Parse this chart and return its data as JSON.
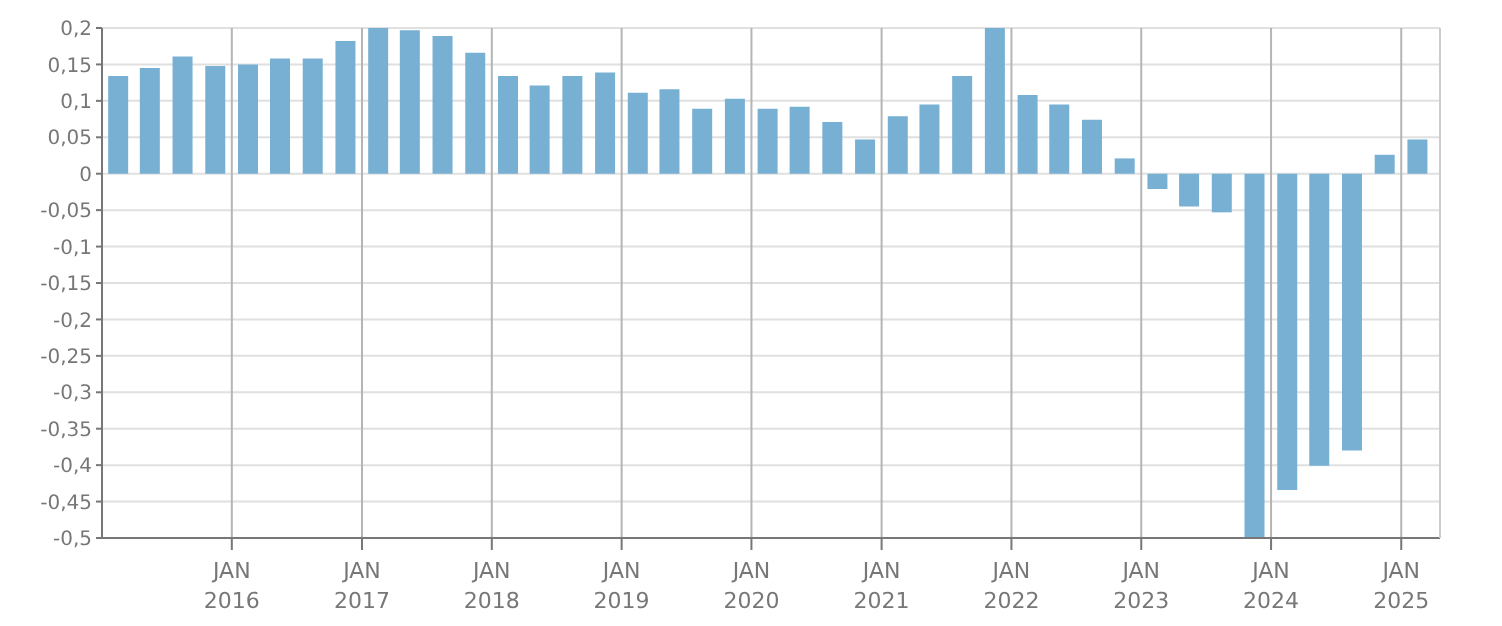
{
  "chart_data": {
    "type": "bar",
    "color": "#78b0d3",
    "x": [
      "2015-02-15",
      "2015-05-15",
      "2015-08-15",
      "2015-11-15",
      "2016-02-15",
      "2016-05-15",
      "2016-08-15",
      "2016-11-15",
      "2017-02-15",
      "2017-05-15",
      "2017-08-15",
      "2017-11-15",
      "2018-02-15",
      "2018-05-15",
      "2018-08-15",
      "2018-11-15",
      "2019-02-15",
      "2019-05-15",
      "2019-08-15",
      "2019-11-15",
      "2020-02-15",
      "2020-05-15",
      "2020-08-15",
      "2020-11-15",
      "2021-02-15",
      "2021-05-15",
      "2021-08-15",
      "2021-11-15",
      "2022-02-15",
      "2022-05-15",
      "2022-08-15",
      "2022-11-15",
      "2023-02-15",
      "2023-05-15",
      "2023-08-15",
      "2023-11-15",
      "2024-02-15",
      "2024-05-15",
      "2024-08-15",
      "2024-11-15",
      "2025-02-15"
    ],
    "values": [
      0.134,
      0.145,
      0.161,
      0.148,
      0.15,
      0.158,
      0.158,
      0.182,
      0.2,
      0.197,
      0.189,
      0.166,
      0.134,
      0.121,
      0.134,
      0.139,
      0.111,
      0.116,
      0.089,
      0.103,
      0.089,
      0.092,
      0.071,
      0.047,
      0.079,
      0.095,
      0.134,
      0.2,
      0.108,
      0.095,
      0.074,
      0.021,
      -0.021,
      -0.045,
      -0.053,
      -0.5,
      -0.434,
      -0.401,
      -0.38,
      0.026,
      0.047
    ],
    "xlim": [
      "2015-01-01",
      "2025-04-20"
    ],
    "xticks": [
      {
        "value": "2016-01-01",
        "label": "JAN 2016"
      },
      {
        "value": "2017-01-01",
        "label": "JAN 2017"
      },
      {
        "value": "2018-01-01",
        "label": "JAN 2018"
      },
      {
        "value": "2019-01-01",
        "label": "JAN 2019"
      },
      {
        "value": "2020-01-01",
        "label": "JAN 2020"
      },
      {
        "value": "2021-01-01",
        "label": "JAN 2021"
      },
      {
        "value": "2022-01-01",
        "label": "JAN 2022"
      },
      {
        "value": "2023-01-01",
        "label": "JAN 2023"
      },
      {
        "value": "2024-01-01",
        "label": "JAN 2024"
      },
      {
        "value": "2025-01-01",
        "label": "JAN 2025"
      }
    ],
    "ylim": [
      -0.5,
      0.2
    ],
    "yticks": [
      {
        "value": -0.5,
        "label": "-0,5"
      },
      {
        "value": -0.45,
        "label": "-0,45"
      },
      {
        "value": -0.4,
        "label": "-0,4"
      },
      {
        "value": -0.35,
        "label": "-0,35"
      },
      {
        "value": -0.3,
        "label": "-0,3"
      },
      {
        "value": -0.25,
        "label": "-0,25"
      },
      {
        "value": -0.2,
        "label": "-0,2"
      },
      {
        "value": -0.15,
        "label": "-0,15"
      },
      {
        "value": -0.1,
        "label": "-0,1"
      },
      {
        "value": -0.05,
        "label": "-0,05"
      },
      {
        "value": 0,
        "label": "0"
      },
      {
        "value": 0.05,
        "label": "0,05"
      },
      {
        "value": 0.1,
        "label": "0,1"
      },
      {
        "value": 0.15,
        "label": "0,15"
      },
      {
        "value": 0.2,
        "label": "0,2"
      }
    ],
    "grid": true
  }
}
